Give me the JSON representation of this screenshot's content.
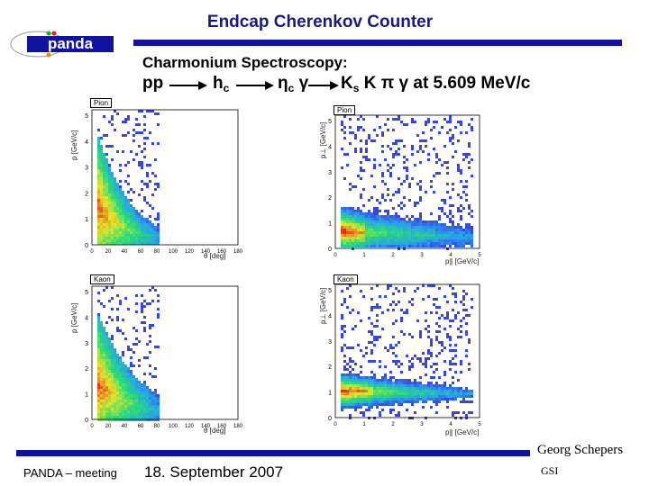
{
  "title": "Endcap Cherenkov Counter",
  "logo_text": "panda",
  "subtitle": "Charmonium Spectroscopy:",
  "reaction": {
    "pp": "pp",
    "hc": "h",
    "hc_sub": "c",
    "etac": "η",
    "etac_sub": "c",
    "gamma": "γ",
    "ks": "K",
    "ks_sub": "s",
    "tail": "K π γ at 5.609 MeV/c"
  },
  "plots": [
    {
      "label": "Pion",
      "ylabel": "p [GeV/c]",
      "xlabel": "θ [deg]",
      "yticks": [
        "5",
        "4",
        "3",
        "2",
        "1",
        "0"
      ],
      "xticks": [
        "0",
        "20",
        "40",
        "60",
        "80",
        "100",
        "120",
        "140",
        "160",
        "180"
      ]
    },
    {
      "label": "Pion",
      "ylabel": "p⊥ [GeV/c]",
      "xlabel": "p∥ [GeV/c]",
      "yticks": [
        "5",
        "4",
        "3",
        "2",
        "1",
        "0"
      ],
      "xticks": [
        "0",
        "1",
        "2",
        "3",
        "4",
        "5"
      ]
    },
    {
      "label": "Kaon",
      "ylabel": "p [GeV/c]",
      "xlabel": "θ [deg]",
      "yticks": [
        "5",
        "4",
        "3",
        "2",
        "1",
        "0"
      ],
      "xticks": [
        "0",
        "20",
        "40",
        "60",
        "80",
        "100",
        "120",
        "140",
        "160",
        "180"
      ]
    },
    {
      "label": "Kaon",
      "ylabel": "p⊥ [GeV/c]",
      "xlabel": "p∥ [GeV/c]",
      "yticks": [
        "5",
        "4",
        "3",
        "2",
        "1",
        "0"
      ],
      "xticks": [
        "0",
        "1",
        "2",
        "3",
        "4",
        "5"
      ]
    }
  ],
  "footer": {
    "meeting": "PANDA – meeting",
    "date": "18. September 2007",
    "author": "Georg Schepers",
    "institute": "GSI"
  },
  "colors": {
    "accent": "#1212a0",
    "title": "#1a1a80"
  }
}
